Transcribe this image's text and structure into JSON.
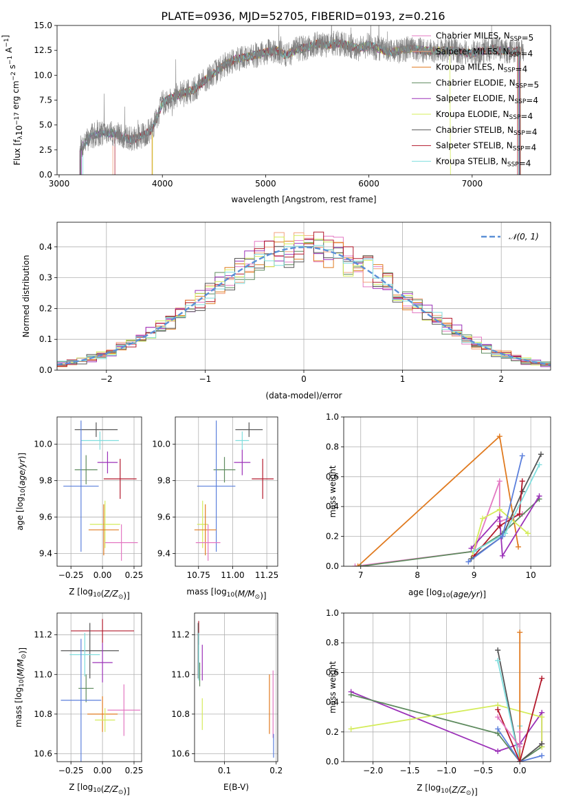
{
  "title": "PLATE=0936, MJD=52705, FIBERID=0193, z=0.216",
  "colors": {
    "chabrier_miles": "#e377c2",
    "salpeter_miles": "#f2a07c",
    "kroupa_miles": "#e07a1f",
    "chabrier_elodie": "#5d8a5d",
    "salpeter_elodie": "#9b30b8",
    "kroupa_elodie": "#d4ec5a",
    "chabrier_stelib": "#555555",
    "salpeter_stelib": "#b2182b",
    "kroupa_stelib": "#7fdede",
    "blue_model": "#5b7fdc",
    "gauss_line": "#5b8fd6",
    "data_spectrum": "#7f7f7f"
  },
  "chart_data": [
    {
      "id": "spectrum",
      "type": "line",
      "xlabel": "wavelength [Angstrom, rest frame]",
      "xlim": [
        2980,
        7760
      ],
      "ylim": [
        0,
        15
      ],
      "xticks": [
        3000,
        4000,
        5000,
        6000,
        7000
      ],
      "yticks": [
        0.0,
        2.5,
        5.0,
        7.5,
        10.0,
        12.5,
        15.0
      ],
      "legend_position": "right",
      "legend": [
        {
          "label": "Chabrier MILES, N",
          "sub": "SSP",
          "suffix": "=5",
          "color": "#e377c2"
        },
        {
          "label": "Salpeter MILES, N",
          "sub": "SSP",
          "suffix": "=4",
          "color": "#f2a07c"
        },
        {
          "label": "Kroupa MILES, N",
          "sub": "SSP",
          "suffix": "=4",
          "color": "#e07a1f"
        },
        {
          "label": "Chabrier ELODIE, N",
          "sub": "SSP",
          "suffix": "=5",
          "color": "#5d8a5d"
        },
        {
          "label": "Salpeter ELODIE, N",
          "sub": "SSP",
          "suffix": "=4",
          "color": "#9b30b8"
        },
        {
          "label": "Kroupa ELODIE, N",
          "sub": "SSP",
          "suffix": "=4",
          "color": "#d4ec5a"
        },
        {
          "label": "Chabrier STELIB, N",
          "sub": "SSP",
          "suffix": "=4",
          "color": "#555555"
        },
        {
          "label": "Salpeter STELIB, N",
          "sub": "SSP",
          "suffix": "=4",
          "color": "#b2182b"
        },
        {
          "label": "Kroupa STELIB, N",
          "sub": "SSP",
          "suffix": "=4",
          "color": "#7fdede"
        }
      ],
      "continuum": [
        [
          3200,
          2.6
        ],
        [
          3300,
          3.8
        ],
        [
          3400,
          4.2
        ],
        [
          3500,
          4.2
        ],
        [
          3600,
          3.9
        ],
        [
          3700,
          3.5
        ],
        [
          3800,
          3.9
        ],
        [
          3900,
          4.5
        ],
        [
          4000,
          7.2
        ],
        [
          4100,
          7.8
        ],
        [
          4200,
          8.2
        ],
        [
          4300,
          8.5
        ],
        [
          4400,
          9.4
        ],
        [
          4500,
          10.2
        ],
        [
          4600,
          11.0
        ],
        [
          4700,
          11.6
        ],
        [
          4800,
          11.8
        ],
        [
          4900,
          12.0
        ],
        [
          5000,
          12.3
        ],
        [
          5100,
          12.5
        ],
        [
          5200,
          12.0
        ],
        [
          5300,
          12.6
        ],
        [
          5400,
          12.8
        ],
        [
          5500,
          13.2
        ],
        [
          5600,
          13.0
        ],
        [
          5700,
          13.2
        ],
        [
          5800,
          13.0
        ],
        [
          5900,
          12.7
        ],
        [
          6000,
          13.0
        ],
        [
          6200,
          12.3
        ],
        [
          6400,
          12.7
        ],
        [
          6600,
          12.4
        ],
        [
          6800,
          12.5
        ],
        [
          7000,
          12.2
        ],
        [
          7200,
          12.6
        ],
        [
          7400,
          12.4
        ],
        [
          7500,
          12.5
        ]
      ],
      "model_starts": [
        3200,
        3520,
        3900,
        3210,
        3215,
        3905,
        3205,
        3540,
        3230
      ],
      "model_ends": [
        7460,
        7470,
        7450,
        7455,
        7460,
        6790,
        7465,
        7440,
        7450
      ]
    },
    {
      "id": "residuals",
      "type": "histogram",
      "xlabel": "(data-model)/error",
      "ylabel": "Normed distribution",
      "xlim": [
        -2.5,
        2.5
      ],
      "ylim": [
        0,
        0.48
      ],
      "xticks": [
        -2,
        -1,
        0,
        1,
        2
      ],
      "yticks": [
        0.0,
        0.1,
        0.2,
        0.3,
        0.4
      ],
      "grid": true,
      "legend": [
        {
          "label": "𝒩(0, 1)",
          "color": "#5b8fd6",
          "dash": true
        }
      ],
      "legend_position": "top-right",
      "bin_width": 0.1
    },
    {
      "id": "age_vs_Z",
      "type": "scatter",
      "xlabel": "Z [log₁₀(Z/Z☉)]",
      "ylabel": "age  [log₁₀(age/yr)]",
      "xlim": [
        -0.36,
        0.31
      ],
      "ylim": [
        9.33,
        10.15
      ],
      "xticks": [
        -0.25,
        0.0,
        0.25
      ],
      "xticklabels": [
        "−0.25",
        "0.00",
        "0.25"
      ],
      "yticks": [
        9.4,
        9.6,
        9.8,
        10.0
      ],
      "grid": true,
      "points": [
        {
          "color": "#555555",
          "x": -0.05,
          "xerr": 0.17,
          "y": 10.08,
          "yerr": 0.04
        },
        {
          "color": "#7fdede",
          "x": -0.02,
          "xerr": 0.15,
          "y": 10.02,
          "yerr": 0.05
        },
        {
          "color": "#5d8a5d",
          "x": -0.13,
          "xerr": 0.09,
          "y": 9.86,
          "yerr": 0.08
        },
        {
          "color": "#9b30b8",
          "x": 0.04,
          "xerr": 0.08,
          "y": 9.9,
          "yerr": 0.06
        },
        {
          "color": "#b2182b",
          "x": 0.14,
          "xerr": 0.13,
          "y": 9.81,
          "yerr": 0.11
        },
        {
          "color": "#5b7fdc",
          "x": -0.17,
          "xerr": 0.14,
          "y": 9.77,
          "yerr": 0.36
        },
        {
          "color": "#d4ec5a",
          "x": 0.02,
          "xerr": 0.12,
          "y": 9.56,
          "yerr": 0.13
        },
        {
          "color": "#e07a1f",
          "x": 0.01,
          "xerr": 0.12,
          "y": 9.53,
          "yerr": 0.14
        },
        {
          "color": "#e377c2",
          "x": 0.15,
          "xerr": 0.13,
          "y": 9.46,
          "yerr": 0.1
        }
      ]
    },
    {
      "id": "age_vs_mass",
      "type": "scatter",
      "xlabel": "mass [log₁₀(M/M☉)]",
      "xlim": [
        10.58,
        11.33
      ],
      "ylim": [
        9.33,
        10.15
      ],
      "xticks": [
        10.75,
        11.0,
        11.25
      ],
      "xticklabels": [
        "10.75",
        "11.00",
        "11.25"
      ],
      "yticks": [
        9.4,
        9.6,
        9.8,
        10.0
      ],
      "grid": true,
      "points": [
        {
          "color": "#555555",
          "x": 11.12,
          "xerr": 0.1,
          "y": 10.08,
          "yerr": 0.04
        },
        {
          "color": "#7fdede",
          "x": 11.07,
          "xerr": 0.05,
          "y": 10.02,
          "yerr": 0.05
        },
        {
          "color": "#5d8a5d",
          "x": 10.94,
          "xerr": 0.08,
          "y": 9.86,
          "yerr": 0.07
        },
        {
          "color": "#9b30b8",
          "x": 11.07,
          "xerr": 0.06,
          "y": 9.9,
          "yerr": 0.07
        },
        {
          "color": "#b2182b",
          "x": 11.22,
          "xerr": 0.08,
          "y": 9.81,
          "yerr": 0.11
        },
        {
          "color": "#5b7fdc",
          "x": 10.88,
          "xerr": 0.14,
          "y": 9.77,
          "yerr": 0.36
        },
        {
          "color": "#d4ec5a",
          "x": 10.78,
          "xerr": 0.04,
          "y": 9.56,
          "yerr": 0.13
        },
        {
          "color": "#e07a1f",
          "x": 10.8,
          "xerr": 0.08,
          "y": 9.53,
          "yerr": 0.14
        },
        {
          "color": "#e377c2",
          "x": 10.82,
          "xerr": 0.09,
          "y": 9.46,
          "yerr": 0.1
        }
      ]
    },
    {
      "id": "weight_vs_age",
      "type": "line",
      "xlabel": "age  [log₁₀(age/yr)]",
      "ylabel": "mass weight",
      "xlim": [
        6.7,
        10.35
      ],
      "ylim": [
        0,
        1.0
      ],
      "xticks": [
        7,
        8,
        9,
        10
      ],
      "yticks": [
        0.0,
        0.2,
        0.4,
        0.6,
        0.8,
        1.0
      ],
      "grid": true,
      "series": [
        {
          "color": "#e377c2",
          "x": [
            6.9,
            9.0,
            9.45,
            9.45,
            9.85
          ],
          "y": [
            0.0,
            0.1,
            0.57,
            0.3,
            0.35
          ]
        },
        {
          "color": "#e07a1f",
          "x": [
            6.95,
            9.45,
            9.78
          ],
          "y": [
            0.0,
            0.87,
            0.13
          ]
        },
        {
          "color": "#5d8a5d",
          "x": [
            7.0,
            9.0,
            9.5,
            10.15
          ],
          "y": [
            0.0,
            0.1,
            0.22,
            0.45
          ]
        },
        {
          "color": "#9b30b8",
          "x": [
            8.95,
            9.45,
            9.5,
            10.15
          ],
          "y": [
            0.12,
            0.33,
            0.07,
            0.47
          ]
        },
        {
          "color": "#d4ec5a",
          "x": [
            8.95,
            9.15,
            9.45,
            9.95
          ],
          "y": [
            0.05,
            0.32,
            0.38,
            0.22
          ]
        },
        {
          "color": "#555555",
          "x": [
            8.95,
            9.5,
            9.85,
            10.18
          ],
          "y": [
            0.05,
            0.2,
            0.5,
            0.75
          ]
        },
        {
          "color": "#b2182b",
          "x": [
            9.0,
            9.45,
            9.8,
            9.85
          ],
          "y": [
            0.07,
            0.27,
            0.35,
            0.57
          ]
        },
        {
          "color": "#7fdede",
          "x": [
            9.0,
            9.55,
            10.15
          ],
          "y": [
            0.1,
            0.22,
            0.68
          ]
        },
        {
          "color": "#5b7fdc",
          "x": [
            8.9,
            9.5,
            9.85
          ],
          "y": [
            0.03,
            0.2,
            0.74
          ]
        }
      ]
    },
    {
      "id": "mass_vs_Z",
      "type": "scatter",
      "xlabel": "Z [log₁₀(Z/Z☉)]",
      "ylabel": "mass [log₁₀(M/M☉)]",
      "xlim": [
        -0.36,
        0.31
      ],
      "ylim": [
        10.56,
        11.31
      ],
      "xticks": [
        -0.25,
        0.0,
        0.25
      ],
      "xticklabels": [
        "−0.25",
        "0.00",
        "0.25"
      ],
      "yticks": [
        10.6,
        10.8,
        11.0,
        11.2
      ],
      "grid": true,
      "points": [
        {
          "color": "#b2182b",
          "x": 0.0,
          "xerr": 0.25,
          "y": 11.22,
          "yerr": 0.06
        },
        {
          "color": "#555555",
          "x": -0.1,
          "xerr": 0.23,
          "y": 11.12,
          "yerr": 0.14
        },
        {
          "color": "#7fdede",
          "x": -0.14,
          "xerr": 0.12,
          "y": 11.1,
          "yerr": 0.11
        },
        {
          "color": "#9b30b8",
          "x": 0.0,
          "xerr": 0.08,
          "y": 11.06,
          "yerr": 0.1
        },
        {
          "color": "#5d8a5d",
          "x": -0.13,
          "xerr": 0.06,
          "y": 10.93,
          "yerr": 0.07
        },
        {
          "color": "#5b7fdc",
          "x": -0.17,
          "xerr": 0.16,
          "y": 10.87,
          "yerr": 0.31
        },
        {
          "color": "#e377c2",
          "x": 0.17,
          "xerr": 0.13,
          "y": 10.82,
          "yerr": 0.13
        },
        {
          "color": "#e07a1f",
          "x": 0.0,
          "xerr": 0.12,
          "y": 10.8,
          "yerr": 0.09
        },
        {
          "color": "#d4ec5a",
          "x": 0.02,
          "xerr": 0.08,
          "y": 10.77,
          "yerr": 0.06
        }
      ]
    },
    {
      "id": "mass_vs_ebv",
      "type": "scatter",
      "xlabel": "E(B-V)",
      "xlim": [
        0.042,
        0.203
      ],
      "ylim": [
        10.56,
        11.31
      ],
      "xticks": [
        0.1,
        0.2
      ],
      "xticklabels": [
        "0.1",
        "0.2"
      ],
      "yticks": [
        10.6,
        10.8,
        11.0,
        11.2
      ],
      "grid": true,
      "points": [
        {
          "color": "#b2182b",
          "x": 0.05,
          "xerr": 0.0,
          "y": 11.21,
          "yerr": 0.06
        },
        {
          "color": "#555555",
          "x": 0.049,
          "xerr": 0.0,
          "y": 11.12,
          "yerr": 0.14
        },
        {
          "color": "#7fdede",
          "x": 0.05,
          "xerr": 0.0,
          "y": 11.09,
          "yerr": 0.12
        },
        {
          "color": "#9b30b8",
          "x": 0.057,
          "xerr": 0.0,
          "y": 11.06,
          "yerr": 0.09
        },
        {
          "color": "#5d8a5d",
          "x": 0.052,
          "xerr": 0.0,
          "y": 11.0,
          "yerr": 0.06
        },
        {
          "color": "#d4ec5a",
          "x": 0.057,
          "xerr": 0.0,
          "y": 10.8,
          "yerr": 0.08
        },
        {
          "color": "#e377c2",
          "x": 0.194,
          "xerr": 0.0,
          "y": 10.85,
          "yerr": 0.17
        },
        {
          "color": "#e07a1f",
          "x": 0.187,
          "xerr": 0.0,
          "y": 10.85,
          "yerr": 0.15
        },
        {
          "color": "#5b7fdc",
          "x": 0.195,
          "xerr": 0.0,
          "y": 10.64,
          "yerr": 0.06
        }
      ]
    },
    {
      "id": "weight_vs_Z",
      "type": "line",
      "xlabel": "Z [log₁₀(Z/Z☉)]",
      "ylabel": "mass weight",
      "xlim": [
        -2.4,
        0.42
      ],
      "ylim": [
        0,
        1.0
      ],
      "xticks": [
        -2.0,
        -1.5,
        -1.0,
        -0.5,
        0.0
      ],
      "xticklabels": [
        "−2.0",
        "−1.5",
        "−1.0",
        "−0.5",
        "0.0"
      ],
      "yticks": [
        0.0,
        0.2,
        0.4,
        0.6,
        0.8,
        1.0
      ],
      "grid": true,
      "series": [
        {
          "color": "#9b30b8",
          "x": [
            -2.3,
            -0.3,
            0.0,
            0.3,
            0.3
          ],
          "y": [
            0.47,
            0.07,
            0.12,
            0.33,
            0.12
          ]
        },
        {
          "color": "#5d8a5d",
          "x": [
            -2.3,
            -0.3,
            0.0,
            0.3
          ],
          "y": [
            0.45,
            0.19,
            0.0,
            0.1
          ]
        },
        {
          "color": "#d4ec5a",
          "x": [
            -2.3,
            -0.3,
            0.3,
            0.3
          ],
          "y": [
            0.22,
            0.38,
            0.3,
            0.1
          ]
        },
        {
          "color": "#555555",
          "x": [
            -0.3,
            0.0,
            0.3
          ],
          "y": [
            0.75,
            0.0,
            0.12
          ]
        },
        {
          "color": "#7fdede",
          "x": [
            -0.3,
            0.0,
            0.0
          ],
          "y": [
            0.68,
            0.0,
            0.24
          ]
        },
        {
          "color": "#e07a1f",
          "x": [
            0.0,
            0.0
          ],
          "y": [
            0.87,
            0.0
          ]
        },
        {
          "color": "#5b7fdc",
          "x": [
            -0.3,
            0.0,
            0.3
          ],
          "y": [
            0.22,
            0.0,
            0.04
          ]
        },
        {
          "color": "#b2182b",
          "x": [
            -0.3,
            0.0,
            0.3
          ],
          "y": [
            0.35,
            0.0,
            0.56
          ]
        },
        {
          "color": "#e377c2",
          "x": [
            -0.3,
            0.0,
            0.0
          ],
          "y": [
            0.3,
            0.1,
            0.2
          ]
        }
      ]
    }
  ]
}
